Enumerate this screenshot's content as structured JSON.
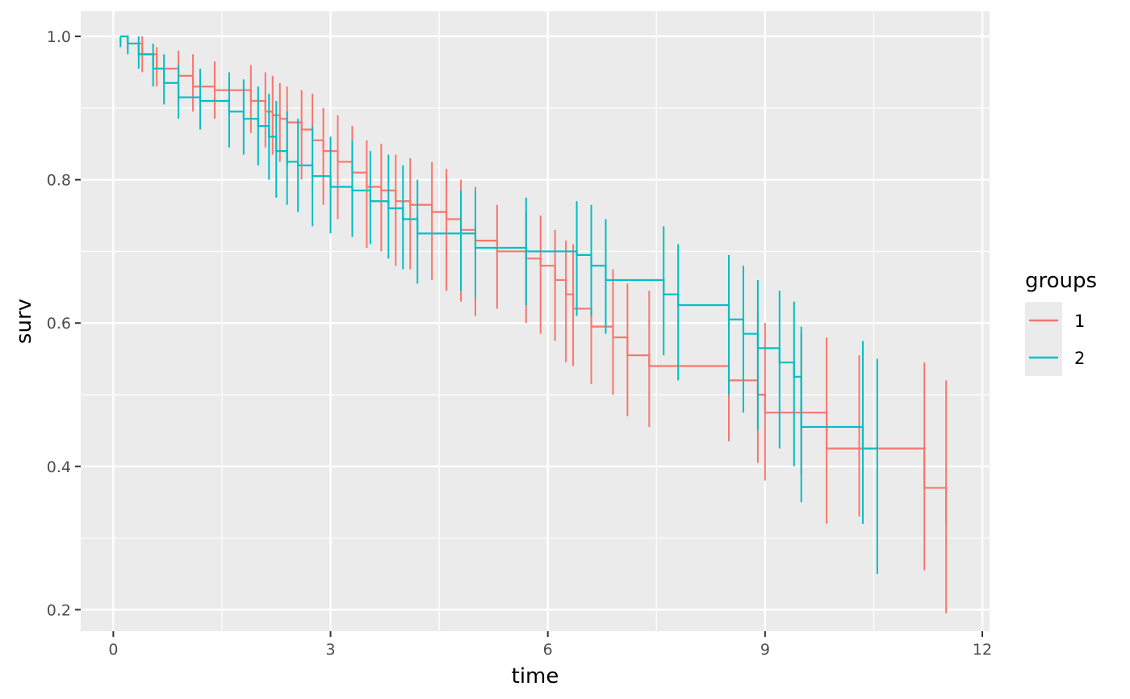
{
  "chart_data": {
    "type": "line",
    "xlabel": "time",
    "ylabel": "surv",
    "xlim": [
      -0.45,
      12.1
    ],
    "ylim": [
      0.17,
      1.035
    ],
    "x_ticks": [
      0,
      3,
      6,
      9,
      12
    ],
    "y_ticks": [
      0.2,
      0.4,
      0.6,
      0.8,
      1.0
    ],
    "x_tick_labels": [
      "0",
      "3",
      "6",
      "9",
      "12"
    ],
    "y_tick_labels": [
      "0.2",
      "0.4",
      "0.6",
      "0.8",
      "1.0"
    ],
    "grid": true,
    "legend": {
      "title": "groups",
      "position": "right"
    },
    "series": [
      {
        "name": "1",
        "color": "#F8766D",
        "x": [
          0.1,
          0.2,
          0.4,
          0.6,
          0.9,
          1.1,
          1.4,
          1.9,
          2.1,
          2.2,
          2.3,
          2.4,
          2.6,
          2.75,
          2.9,
          3.1,
          3.3,
          3.5,
          3.7,
          3.9,
          4.1,
          4.4,
          4.6,
          4.8,
          5.0,
          5.3,
          5.7,
          5.9,
          6.1,
          6.25,
          6.35,
          6.6,
          6.9,
          7.1,
          7.4,
          8.5,
          8.9,
          9.0,
          9.5,
          9.85,
          10.3,
          11.2,
          11.5
        ],
        "y": [
          1.0,
          0.99,
          0.975,
          0.955,
          0.945,
          0.93,
          0.925,
          0.91,
          0.895,
          0.89,
          0.885,
          0.88,
          0.87,
          0.855,
          0.84,
          0.825,
          0.81,
          0.79,
          0.785,
          0.77,
          0.765,
          0.755,
          0.745,
          0.73,
          0.715,
          0.7,
          0.69,
          0.68,
          0.66,
          0.64,
          0.62,
          0.595,
          0.58,
          0.555,
          0.54,
          0.52,
          0.5,
          0.475,
          0.475,
          0.425,
          0.425,
          0.37,
          0.32
        ],
        "err_low": [
          0.99,
          0.98,
          0.95,
          0.93,
          0.91,
          0.895,
          0.885,
          0.865,
          0.845,
          0.835,
          0.825,
          0.82,
          0.8,
          0.785,
          0.765,
          0.745,
          0.73,
          0.705,
          0.7,
          0.68,
          0.675,
          0.66,
          0.645,
          0.63,
          0.61,
          0.62,
          0.6,
          0.585,
          0.575,
          0.545,
          0.54,
          0.515,
          0.5,
          0.47,
          0.455,
          0.435,
          0.405,
          0.38,
          0.39,
          0.32,
          0.33,
          0.255,
          0.195
        ],
        "err_high": [
          1.0,
          1.0,
          1.0,
          0.985,
          0.98,
          0.975,
          0.965,
          0.96,
          0.95,
          0.945,
          0.935,
          0.93,
          0.925,
          0.92,
          0.9,
          0.89,
          0.875,
          0.855,
          0.85,
          0.835,
          0.83,
          0.825,
          0.815,
          0.8,
          0.79,
          0.765,
          0.755,
          0.75,
          0.73,
          0.715,
          0.71,
          0.685,
          0.675,
          0.655,
          0.645,
          0.63,
          0.615,
          0.6,
          0.585,
          0.58,
          0.555,
          0.545,
          0.52
        ]
      },
      {
        "name": "2",
        "color": "#00BFC4",
        "x": [
          0.1,
          0.2,
          0.35,
          0.55,
          0.7,
          0.9,
          1.2,
          1.6,
          1.8,
          2.0,
          2.15,
          2.25,
          2.4,
          2.55,
          2.75,
          3.0,
          3.3,
          3.55,
          3.8,
          4.0,
          4.2,
          4.8,
          5.0,
          5.7,
          6.4,
          6.6,
          6.8,
          7.6,
          7.8,
          8.5,
          8.7,
          8.9,
          9.2,
          9.4,
          9.5,
          10.35,
          10.55
        ],
        "y": [
          1.0,
          0.99,
          0.975,
          0.955,
          0.935,
          0.915,
          0.91,
          0.895,
          0.885,
          0.875,
          0.86,
          0.84,
          0.825,
          0.82,
          0.805,
          0.79,
          0.785,
          0.77,
          0.76,
          0.745,
          0.725,
          0.725,
          0.705,
          0.7,
          0.695,
          0.68,
          0.66,
          0.64,
          0.625,
          0.605,
          0.585,
          0.565,
          0.545,
          0.525,
          0.455,
          0.425,
          0.43
        ],
        "err_low": [
          0.985,
          0.975,
          0.955,
          0.93,
          0.905,
          0.885,
          0.87,
          0.845,
          0.835,
          0.82,
          0.8,
          0.775,
          0.765,
          0.755,
          0.735,
          0.725,
          0.72,
          0.71,
          0.69,
          0.675,
          0.655,
          0.645,
          0.635,
          0.625,
          0.61,
          0.61,
          0.585,
          0.555,
          0.52,
          0.5,
          0.475,
          0.45,
          0.425,
          0.4,
          0.35,
          0.32,
          0.25
        ],
        "err_high": [
          1.0,
          1.0,
          1.0,
          0.99,
          0.975,
          0.96,
          0.955,
          0.95,
          0.94,
          0.93,
          0.92,
          0.91,
          0.895,
          0.885,
          0.875,
          0.86,
          0.855,
          0.84,
          0.835,
          0.82,
          0.8,
          0.785,
          0.785,
          0.775,
          0.77,
          0.765,
          0.745,
          0.735,
          0.71,
          0.695,
          0.68,
          0.66,
          0.645,
          0.63,
          0.595,
          0.575,
          0.55
        ]
      }
    ]
  }
}
